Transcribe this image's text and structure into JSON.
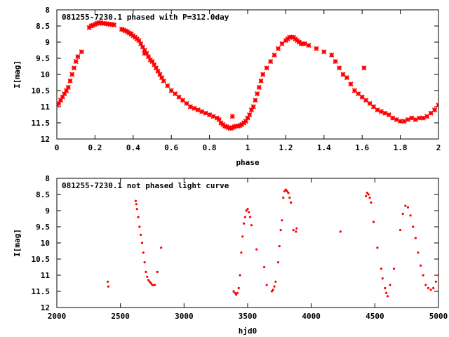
{
  "colors": {
    "points": "#ff0000",
    "axes": "#000000",
    "background": "#ffffff"
  },
  "chart_data": [
    {
      "type": "scatter",
      "title": "081255-7230.1 phased with P=312.0day",
      "xlabel": "phase",
      "ylabel": "I[mag]",
      "xlim": [
        0,
        2
      ],
      "ylim": [
        12,
        8
      ],
      "y_inverted": true,
      "grid": false,
      "legend": "none",
      "xticks": [
        0,
        0.2,
        0.4,
        0.6,
        0.8,
        1,
        1.2,
        1.4,
        1.6,
        1.8,
        2
      ],
      "xtick_labels": [
        "0",
        "0.2",
        "0.4",
        "0.6",
        "0.8",
        "1",
        "1.2",
        "1.4",
        "1.6",
        "1.8",
        "2"
      ],
      "yticks": [
        8,
        8.5,
        9,
        9.5,
        10,
        10.5,
        11,
        11.5,
        12
      ],
      "ytick_labels": [
        "8",
        "8.5",
        "9",
        "9.5",
        "10",
        "10.5",
        "11",
        "11.5",
        "12"
      ],
      "series": [
        {
          "marker": "cross",
          "x": [
            0.0,
            0.01,
            0.02,
            0.03,
            0.04,
            0.05,
            0.06,
            0.07,
            0.08,
            0.09,
            0.1,
            0.11,
            0.13,
            0.17,
            0.18,
            0.19,
            0.2,
            0.21,
            0.22,
            0.23,
            0.24,
            0.25,
            0.26,
            0.27,
            0.28,
            0.29,
            0.3,
            0.34,
            0.35,
            0.36,
            0.37,
            0.38,
            0.39,
            0.4,
            0.41,
            0.42,
            0.43,
            0.44,
            0.45,
            0.46,
            0.47,
            0.48,
            0.49,
            0.5,
            0.51,
            0.52,
            0.53,
            0.54,
            0.55,
            0.56,
            0.58,
            0.6,
            0.62,
            0.64,
            0.66,
            0.68,
            0.7,
            0.72,
            0.74,
            0.76,
            0.78,
            0.8,
            0.82,
            0.84,
            0.85,
            0.86,
            0.87,
            0.88,
            0.89,
            0.9,
            0.91,
            0.92,
            0.93,
            0.94,
            0.95,
            0.96,
            0.97,
            0.98,
            0.99,
            0.92,
            1.0,
            1.01,
            1.02,
            1.03,
            1.04,
            1.05,
            1.06,
            1.07,
            1.08,
            1.1,
            1.12,
            1.14,
            1.16,
            1.18,
            1.2,
            1.21,
            1.22,
            1.23,
            1.24,
            1.25,
            1.26,
            1.27,
            1.28,
            1.29,
            1.3,
            1.32,
            1.36,
            1.4,
            1.44,
            1.46,
            1.48,
            1.5,
            1.52,
            1.54,
            1.56,
            1.58,
            1.6,
            1.62,
            1.64,
            1.66,
            1.68,
            1.7,
            1.72,
            1.74,
            1.76,
            1.78,
            1.8,
            1.82,
            1.84,
            1.86,
            1.88,
            1.9,
            1.92,
            1.94,
            1.96,
            1.98,
            2.0,
            1.61,
            0.46
          ],
          "y": [
            10.95,
            10.9,
            10.8,
            10.7,
            10.6,
            10.5,
            10.4,
            10.2,
            10.0,
            9.8,
            9.6,
            9.45,
            9.3,
            8.55,
            8.5,
            8.48,
            8.45,
            8.42,
            8.4,
            8.4,
            8.42,
            8.42,
            8.43,
            8.44,
            8.45,
            8.45,
            8.47,
            8.6,
            8.62,
            8.65,
            8.68,
            8.72,
            8.75,
            8.8,
            8.85,
            8.9,
            8.95,
            9.05,
            9.15,
            9.25,
            9.35,
            9.45,
            9.55,
            9.6,
            9.7,
            9.8,
            9.9,
            10.0,
            10.1,
            10.2,
            10.35,
            10.5,
            10.6,
            10.7,
            10.8,
            10.9,
            11.0,
            11.05,
            11.1,
            11.15,
            11.2,
            11.25,
            11.3,
            11.35,
            11.4,
            11.5,
            11.55,
            11.6,
            11.62,
            11.65,
            11.67,
            11.65,
            11.62,
            11.6,
            11.6,
            11.58,
            11.55,
            11.5,
            11.45,
            11.3,
            11.35,
            11.25,
            11.1,
            11.0,
            10.8,
            10.6,
            10.4,
            10.2,
            10.0,
            9.8,
            9.6,
            9.4,
            9.2,
            9.05,
            8.95,
            8.9,
            8.85,
            8.85,
            8.85,
            8.9,
            8.95,
            9.0,
            9.05,
            9.05,
            9.05,
            9.1,
            9.2,
            9.3,
            9.4,
            9.6,
            9.8,
            10.0,
            10.1,
            10.3,
            10.5,
            10.6,
            10.7,
            10.8,
            10.9,
            11.0,
            11.1,
            11.15,
            11.2,
            11.25,
            11.35,
            11.4,
            11.45,
            11.45,
            11.4,
            11.35,
            11.4,
            11.35,
            11.35,
            11.3,
            11.2,
            11.1,
            10.95,
            9.8,
            9.35
          ]
        }
      ]
    },
    {
      "type": "scatter",
      "title": "081255-7230.1 not phased light curve",
      "xlabel": "hjd0",
      "ylabel": "I[mag]",
      "xlim": [
        2000,
        5000
      ],
      "ylim": [
        12,
        8
      ],
      "y_inverted": true,
      "grid": false,
      "legend": "none",
      "xticks": [
        2000,
        2500,
        3000,
        3500,
        4000,
        4500,
        5000
      ],
      "xtick_labels": [
        "2000",
        "2500",
        "3000",
        "3500",
        "4000",
        "4500",
        "5000"
      ],
      "yticks": [
        8,
        8.5,
        9,
        9.5,
        10,
        10.5,
        11,
        11.5,
        12
      ],
      "ytick_labels": [
        "8",
        "8.5",
        "9",
        "9.5",
        "10",
        "10.5",
        "11",
        "11.5",
        "12"
      ],
      "series": [
        {
          "marker": "dot",
          "x": [
            2400,
            2405,
            2620,
            2625,
            2630,
            2640,
            2650,
            2660,
            2670,
            2680,
            2690,
            2700,
            2710,
            2720,
            2730,
            2740,
            2750,
            2760,
            2770,
            2790,
            2820,
            3390,
            3400,
            3410,
            3420,
            3430,
            3440,
            3450,
            3460,
            3470,
            3480,
            3490,
            3500,
            3510,
            3520,
            3530,
            3570,
            3630,
            3650,
            3690,
            3700,
            3710,
            3720,
            3740,
            3750,
            3760,
            3770,
            3780,
            3790,
            3800,
            3810,
            3820,
            3830,
            3840,
            3860,
            3880,
            3885,
            4230,
            4430,
            4440,
            4450,
            4460,
            4470,
            4490,
            4520,
            4550,
            4560,
            4580,
            4590,
            4600,
            4620,
            4650,
            4700,
            4720,
            4740,
            4760,
            4780,
            4800,
            4820,
            4840,
            4860,
            4880,
            4900,
            4920,
            4940,
            4960,
            4980,
            5000
          ],
          "y": [
            11.2,
            11.35,
            8.7,
            8.8,
            8.95,
            9.2,
            9.5,
            9.75,
            10.0,
            10.3,
            10.6,
            10.9,
            11.05,
            11.15,
            11.2,
            11.25,
            11.3,
            11.3,
            11.3,
            10.9,
            10.15,
            11.5,
            11.55,
            11.6,
            11.55,
            11.4,
            11.0,
            10.3,
            9.8,
            9.4,
            9.2,
            9.0,
            8.95,
            9.05,
            9.2,
            9.45,
            10.2,
            10.75,
            11.3,
            11.5,
            11.45,
            11.35,
            11.2,
            10.6,
            10.1,
            9.6,
            9.3,
            8.6,
            8.4,
            8.35,
            8.4,
            8.45,
            8.6,
            8.75,
            9.6,
            9.65,
            9.55,
            9.65,
            8.55,
            8.45,
            8.5,
            8.6,
            8.75,
            9.35,
            10.15,
            10.8,
            11.1,
            11.4,
            11.55,
            11.65,
            11.3,
            10.8,
            9.6,
            9.1,
            8.85,
            8.9,
            9.15,
            9.5,
            9.85,
            10.3,
            10.7,
            11.0,
            11.3,
            11.4,
            11.45,
            11.4,
            11.2,
            11.0
          ]
        }
      ]
    }
  ]
}
